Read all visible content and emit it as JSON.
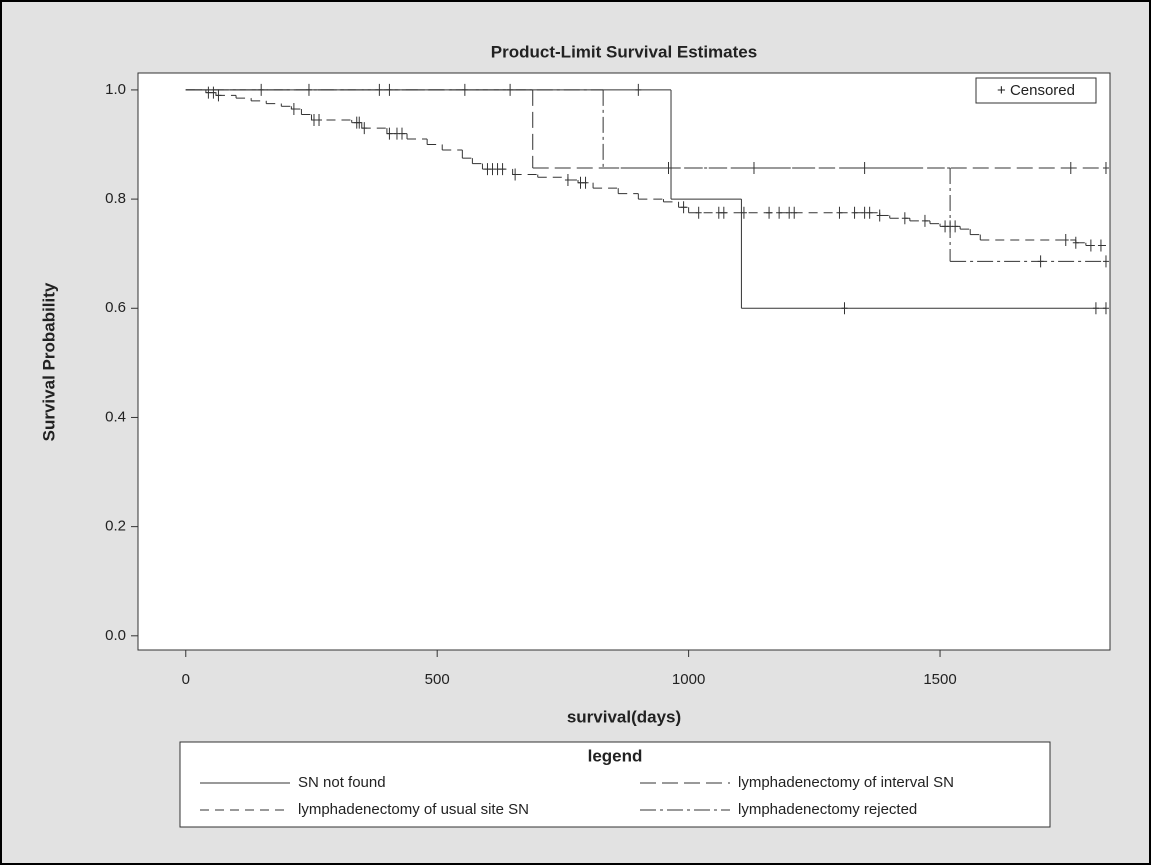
{
  "chart_data": {
    "type": "step",
    "title": "Product-Limit Survival Estimates",
    "x_label": "survival(days)",
    "y_label": "Survival Probability",
    "legend_title": "legend",
    "censored_label": "+ Censored",
    "xlim": [
      -95,
      1838
    ],
    "xticks": [
      0,
      500,
      1000,
      1500
    ],
    "ylim": [
      -0.026,
      1.031
    ],
    "yticks": [
      {
        "value": 0,
        "label": "0.0"
      },
      0.2,
      0.4,
      0.6,
      0.8,
      {
        "value": 1,
        "label": "1.0"
      }
    ],
    "series": [
      {
        "name": "SN not found",
        "color": "#333333",
        "dash": "none",
        "x": [
          0,
          965,
          1105,
          1830
        ],
        "values": [
          1,
          0.8,
          0.6,
          0.6
        ],
        "censored_x": [
          150,
          245,
          385,
          405,
          555,
          645,
          900,
          1310,
          1810,
          1830
        ],
        "censored_values": [
          1,
          1,
          1,
          1,
          1,
          1,
          1,
          0.6,
          0.6,
          0.6
        ]
      },
      {
        "name": "lymphadenectomy of interval SN",
        "color": "#333333",
        "dash": "16 6",
        "x": [
          0,
          690,
          1830
        ],
        "values": [
          1,
          0.857,
          0.857
        ],
        "censored_x": [
          960,
          1130,
          1350,
          1760,
          1830
        ],
        "censored_values": [
          0.857,
          0.857,
          0.857,
          0.857,
          0.857
        ]
      },
      {
        "name": "lymphadenectomy of usual site SN",
        "color": "#333333",
        "dash": "9 6",
        "x": [
          0,
          40,
          60,
          100,
          130,
          160,
          190,
          210,
          230,
          250,
          330,
          350,
          400,
          440,
          480,
          510,
          550,
          570,
          590,
          650,
          700,
          760,
          780,
          810,
          860,
          900,
          950,
          980,
          1000,
          1380,
          1400,
          1440,
          1480,
          1500,
          1540,
          1560,
          1580,
          1770,
          1790,
          1830
        ],
        "values": [
          1,
          0.995,
          0.99,
          0.985,
          0.98,
          0.975,
          0.97,
          0.965,
          0.955,
          0.945,
          0.94,
          0.93,
          0.92,
          0.91,
          0.9,
          0.89,
          0.875,
          0.865,
          0.855,
          0.845,
          0.84,
          0.835,
          0.83,
          0.82,
          0.81,
          0.8,
          0.795,
          0.785,
          0.775,
          0.77,
          0.765,
          0.76,
          0.755,
          0.75,
          0.745,
          0.735,
          0.725,
          0.72,
          0.715,
          0.715
        ],
        "censored_x": [
          45,
          55,
          65,
          215,
          255,
          265,
          340,
          345,
          355,
          405,
          420,
          430,
          600,
          610,
          620,
          630,
          655,
          760,
          785,
          795,
          990,
          1020,
          1060,
          1070,
          1110,
          1160,
          1180,
          1200,
          1210,
          1300,
          1330,
          1350,
          1360,
          1380,
          1430,
          1470,
          1510,
          1520,
          1530,
          1750,
          1770,
          1800,
          1820
        ],
        "censored_values": [
          0.995,
          0.995,
          0.99,
          0.965,
          0.945,
          0.945,
          0.94,
          0.94,
          0.93,
          0.92,
          0.92,
          0.92,
          0.855,
          0.855,
          0.855,
          0.855,
          0.845,
          0.835,
          0.83,
          0.83,
          0.785,
          0.775,
          0.775,
          0.775,
          0.775,
          0.775,
          0.775,
          0.775,
          0.775,
          0.775,
          0.775,
          0.775,
          0.775,
          0.77,
          0.765,
          0.76,
          0.75,
          0.75,
          0.75,
          0.725,
          0.72,
          0.715,
          0.715
        ]
      },
      {
        "name": "lymphadenectomy rejected",
        "color": "#333333",
        "dash": "16 4 3 4",
        "x": [
          0,
          830,
          1520,
          1830
        ],
        "values": [
          1,
          0.857,
          0.686,
          0.686
        ],
        "censored_x": [
          1700,
          1830
        ],
        "censored_values": [
          0.686,
          0.686
        ]
      }
    ]
  }
}
